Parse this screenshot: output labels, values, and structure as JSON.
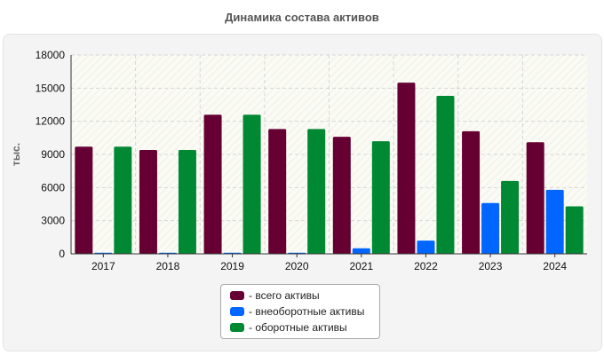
{
  "chart_data": {
    "type": "bar",
    "title": "Динамика состава активов",
    "ylabel": "тыс.",
    "xlabel": "",
    "categories": [
      "2017",
      "2018",
      "2019",
      "2020",
      "2021",
      "2022",
      "2023",
      "2024"
    ],
    "ylim": [
      0,
      18000
    ],
    "yticks": [
      "0",
      "3000",
      "6000",
      "9000",
      "12000",
      "15000",
      "18000"
    ],
    "grid": true,
    "legend_position": "bottom",
    "series": [
      {
        "name": "- всего активы",
        "color": "#660033",
        "values": [
          9700,
          9400,
          12600,
          11300,
          10600,
          15500,
          11100,
          10100
        ]
      },
      {
        "name": "- внеоборотные активы",
        "color": "#0066ff",
        "values": [
          100,
          100,
          100,
          100,
          500,
          1200,
          4600,
          5800
        ]
      },
      {
        "name": "- оборотные активы",
        "color": "#008833",
        "values": [
          9700,
          9400,
          12600,
          11300,
          10200,
          14300,
          6600,
          4300
        ]
      }
    ]
  }
}
